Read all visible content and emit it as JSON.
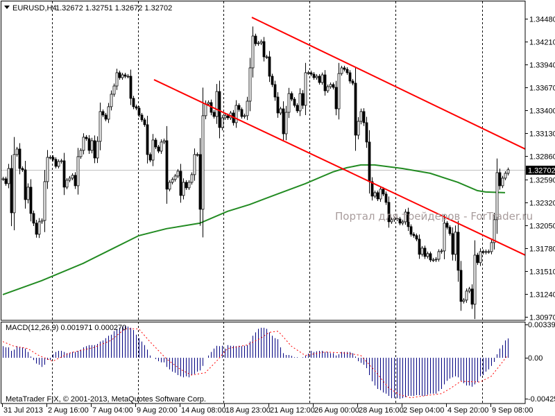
{
  "header": {
    "menu_icon": "triangle-down-icon",
    "symbol": "EURUSD,H4",
    "ohlc": "1.32672 1.32751 1.32672 1.32702"
  },
  "watermark": "Портал для трейдеров - ForTrader.ru",
  "copyright": "MetaTrader FIX, © 2001-2013, MetaQuotes Software Corp.",
  "colors": {
    "bull_body": "#ffffff",
    "bear_body": "#000000",
    "trendline": "#ff0000",
    "ma": "#228b22",
    "macd_hist": "#000080",
    "macd_signal": "#ff0000",
    "bid_line": "#c0c0c0"
  },
  "chart_data": [
    {
      "type": "candlestick",
      "symbol": "EURUSD",
      "timeframe": "H4",
      "ylim": [
        1.3097,
        1.3448
      ],
      "yticks": [
        "1.34480",
        "1.34210",
        "1.33940",
        "1.33670",
        "1.33400",
        "1.33130",
        "1.32860",
        "1.32590",
        "1.32320",
        "1.32050",
        "1.31780",
        "1.31510",
        "1.31240",
        "1.30970"
      ],
      "current_price": "1.32702",
      "xticks": [
        "31 Jul 2013",
        "2 Aug 16:00",
        "7 Aug 04:00",
        "9 Aug 20:00",
        "14 Aug 08:00",
        "18 Aug 23:00",
        "21 Aug 12:00",
        "26 Aug 00:00",
        "28 Aug 16:00",
        "2 Sep 04:00",
        "4 Sep 20:00",
        "9 Sep 08:00"
      ],
      "grid": "vertical dashed",
      "closes": [
        1.32595,
        1.32538,
        1.32717,
        1.32195,
        1.32881,
        1.32946,
        1.32717,
        1.32701,
        1.3235,
        1.32497,
        1.32187,
        1.32073,
        1.31942,
        1.32089,
        1.32105,
        1.32562,
        1.32848,
        1.32848,
        1.32824,
        1.32742,
        1.32799,
        1.32807,
        1.32497,
        1.32579,
        1.32603,
        1.32636,
        1.32513,
        1.32856,
        1.3293,
        1.33085,
        1.33068,
        1.3293,
        1.33044,
        1.3284,
        1.33036,
        1.33387,
        1.33346,
        1.33297,
        1.33444,
        1.33591,
        1.33688,
        1.33844,
        1.33786,
        1.33819,
        1.33803,
        1.33803,
        1.33542,
        1.33444,
        1.33427,
        1.33346,
        1.33289,
        1.33232,
        1.32881,
        1.32815,
        1.33052,
        1.3297,
        1.32921,
        1.33028,
        1.33044,
        1.32473,
        1.32554,
        1.32587,
        1.32628,
        1.32685,
        1.32399,
        1.32554,
        1.32489,
        1.32554,
        1.32644,
        1.32881,
        1.32881,
        1.32236,
        1.33338,
        1.33476,
        1.33493,
        1.33378,
        1.33329,
        1.33623,
        1.33199,
        1.33313,
        1.33338,
        1.33313,
        1.3337,
        1.33256,
        1.3346,
        1.33411,
        1.33329,
        1.33338,
        1.33509,
        1.33901,
        1.34276,
        1.34186,
        1.34194,
        1.34211,
        1.34031,
        1.34031,
        1.33803,
        1.33705,
        1.33558,
        1.3337,
        1.33419,
        1.33125,
        1.33378,
        1.33599,
        1.33533,
        1.3346,
        1.33395,
        1.33599,
        1.3346,
        1.33844,
        1.33844,
        1.33827,
        1.33786,
        1.33803,
        1.33729,
        1.33819,
        1.33631,
        1.3368,
        1.33705,
        1.33672,
        1.33419,
        1.33835,
        1.33901,
        1.33884,
        1.33844,
        1.33746,
        1.33721,
        1.33109,
        1.33272,
        1.33387,
        1.33256,
        1.33028,
        1.32562,
        1.32391,
        1.32432,
        1.32358,
        1.32473,
        1.32416,
        1.32318,
        1.32089,
        1.32114,
        1.3213,
        1.32122,
        1.32073,
        1.32089,
        1.32203,
        1.32032,
        1.31942,
        1.31926,
        1.31885,
        1.31706,
        1.31779,
        1.31681,
        1.31714,
        1.3164,
        1.3164,
        1.31648,
        1.31738,
        1.31746,
        1.32073,
        1.32024,
        1.3195,
        1.31706,
        1.31967,
        1.31518,
        1.31151,
        1.31167,
        1.31273,
        1.31298,
        1.31118,
        1.31697,
        1.31608,
        1.31738,
        1.3173,
        1.31738,
        1.31738,
        1.31844,
        1.32114,
        1.32668,
        1.32513,
        1.32603,
        1.3266,
        1.32702
      ],
      "moving_average": [
        [
          0,
          1.31232
        ],
        [
          14,
          1.31396
        ],
        [
          29,
          1.316
        ],
        [
          39,
          1.31763
        ],
        [
          49,
          1.31926
        ],
        [
          59,
          1.32008
        ],
        [
          71,
          1.32073
        ],
        [
          81,
          1.32212
        ],
        [
          89,
          1.32293
        ],
        [
          99,
          1.32416
        ],
        [
          109,
          1.32538
        ],
        [
          119,
          1.32677
        ],
        [
          124,
          1.32726
        ],
        [
          129,
          1.32758
        ],
        [
          134,
          1.32758
        ],
        [
          144,
          1.32717
        ],
        [
          154,
          1.3266
        ],
        [
          164,
          1.32554
        ],
        [
          171,
          1.32456
        ],
        [
          174,
          1.3244
        ],
        [
          181,
          1.32432
        ]
      ],
      "trendlines": [
        {
          "from": [
            89.75,
            1.34496
          ],
          "to": [
            188.25,
            1.32946
          ]
        },
        {
          "from": [
            54.5,
            1.33762
          ],
          "to": [
            188.25,
            1.31697
          ]
        }
      ]
    },
    {
      "type": "bar",
      "title": "MACD(12,26,9) 0.001971 0.000270",
      "ylim": [
        -0.004255,
        0.003393
      ],
      "yticks": [
        "0.003393",
        "0.00",
        "-0.004255"
      ],
      "histogram": [
        0.00118,
        0.00106,
        0.00106,
        0.00071,
        0.00083,
        0.00118,
        0.00106,
        0.00106,
        0.00094,
        0.00059,
        0.00012,
        -0.00023,
        -0.00059,
        -0.00071,
        -0.00094,
        -0.00071,
        -0.00021,
        -0.00023,
        0.00035,
        0.00059,
        0.00071,
        0.00071,
        0.00059,
        0.00047,
        0.00047,
        0.00059,
        0.00059,
        0.00071,
        0.00083,
        0.00106,
        0.00118,
        0.00129,
        0.00129,
        0.00129,
        0.00141,
        0.00165,
        0.00177,
        0.002,
        0.00224,
        0.00235,
        0.00271,
        0.00295,
        0.00306,
        0.00318,
        0.00323,
        0.00318,
        0.00306,
        0.00283,
        0.00235,
        0.002,
        0.00165,
        0.00129,
        0.00083,
        0.00023,
        0,
        -0.00012,
        -0.00035,
        -0.00047,
        -0.00047,
        -0.00094,
        -0.00118,
        -0.00141,
        -0.00153,
        -0.00177,
        -0.00189,
        -0.002,
        -0.00189,
        -0.002,
        -0.00177,
        -0.00165,
        -0.00141,
        -0.00129,
        -0.00083,
        0,
        0.00023,
        0.00059,
        0.00094,
        0.00122,
        0.00118,
        0.00122,
        0.00094,
        0.00129,
        0.00122,
        0.00122,
        0.00118,
        0.00122,
        0.00118,
        0.00122,
        0.00129,
        0.00165,
        0.00224,
        0.00259,
        0.00295,
        0.00306,
        0.00306,
        0.00295,
        0.00259,
        0.00224,
        0.002,
        0.00189,
        0.00106,
        0.00047,
        0.00028,
        0.00028,
        0.00019,
        5e-05,
        5e-05,
        0,
        5e-05,
        0.00019,
        0.00042,
        0.00071,
        0.00059,
        0.00066,
        0.00071,
        0.00071,
        0.00059,
        0.00059,
        0.00047,
        0.00047,
        0.00023,
        0.00035,
        0.00059,
        0.00059,
        0.00059,
        0.00059,
        0.00047,
        0.00012,
        -0.00035,
        -0.00052,
        -0.00071,
        -0.00106,
        -0.00177,
        -0.0024,
        -0.00283,
        -0.00318,
        -0.0033,
        -0.00354,
        -0.00366,
        -0.00389,
        -0.00412,
        -0.00412,
        -0.00412,
        -0.00419,
        -0.00412,
        -0.00401,
        -0.00389,
        -0.00389,
        -0.00389,
        -0.00382,
        -0.00382,
        -0.00389,
        -0.00389,
        -0.00377,
        -0.00366,
        -0.00366,
        -0.00366,
        -0.00341,
        -0.00318,
        -0.00271,
        -0.00235,
        -0.00212,
        -0.002,
        -0.00189,
        -0.002,
        -0.00235,
        -0.00259,
        -0.00283,
        -0.00283,
        -0.00295,
        -0.00271,
        -0.00247,
        -0.00189,
        -0.00177,
        -0.00141,
        -0.00118,
        -0.00083,
        -0.00042,
        0.00035,
        0.00094,
        0.00129,
        0.00177,
        0.00197
      ],
      "signal": [
        [
          0,
          0.00165
        ],
        [
          4,
          0.00118
        ],
        [
          9,
          0.00094
        ],
        [
          13,
          0.00023
        ],
        [
          18,
          -0.00035
        ],
        [
          24,
          0.00047
        ],
        [
          33,
          0.00106
        ],
        [
          39,
          0.00177
        ],
        [
          44,
          0.00295
        ],
        [
          49,
          0.00295
        ],
        [
          53,
          0.00165
        ],
        [
          59,
          -0.00012
        ],
        [
          64,
          -0.00118
        ],
        [
          68,
          -0.00177
        ],
        [
          73,
          -0.00153
        ],
        [
          77,
          -0.00035
        ],
        [
          81,
          0.00094
        ],
        [
          88,
          0.00129
        ],
        [
          93,
          0.002
        ],
        [
          96,
          0.00259
        ],
        [
          99,
          0.00271
        ],
        [
          100,
          0.00247
        ],
        [
          104,
          0.00118
        ],
        [
          109,
          0.00023
        ],
        [
          116,
          0.00059
        ],
        [
          124,
          0.00047
        ],
        [
          129,
          0.00023
        ],
        [
          134,
          -0.00129
        ],
        [
          139,
          -0.00306
        ],
        [
          143,
          -0.00377
        ],
        [
          147,
          -0.00408
        ],
        [
          153,
          -0.00384
        ],
        [
          158,
          -0.00366
        ],
        [
          161,
          -0.00318
        ],
        [
          165,
          -0.0024
        ],
        [
          172,
          -0.00247
        ],
        [
          176,
          -0.00189
        ],
        [
          179,
          -0.00083
        ],
        [
          182,
          0.00027
        ]
      ]
    }
  ]
}
